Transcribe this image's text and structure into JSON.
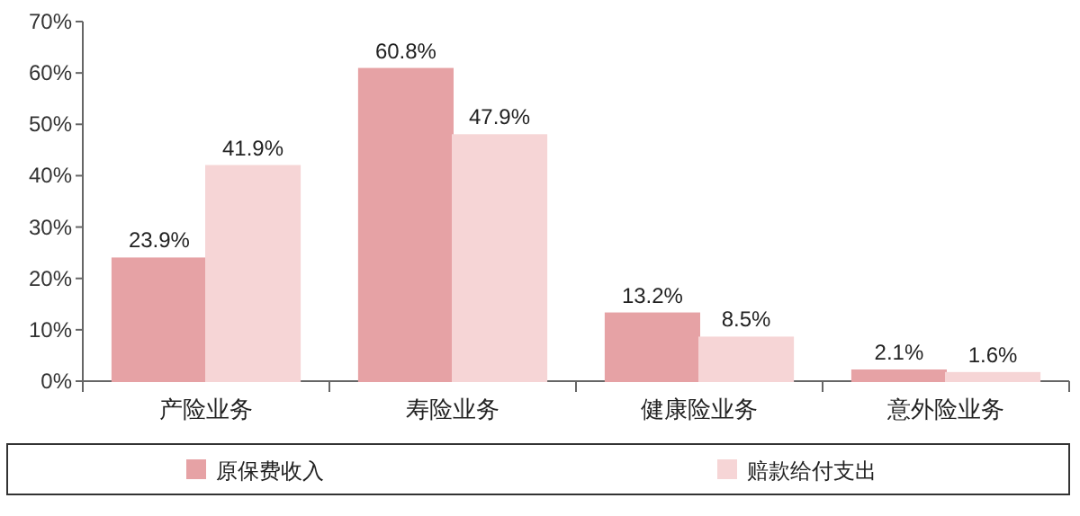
{
  "chart_data": {
    "type": "bar",
    "categories": [
      "产险业务",
      "寿险业务",
      "健康险业务",
      "意外险业务"
    ],
    "series": [
      {
        "name": "原保费收入",
        "color": "#e6a2a5",
        "values": [
          23.9,
          60.8,
          13.2,
          2.1
        ],
        "value_labels": [
          "23.9%",
          "60.8%",
          "13.2%",
          "2.1%"
        ]
      },
      {
        "name": "赔款给付支出",
        "color": "#f6d5d6",
        "values": [
          41.9,
          47.9,
          8.5,
          1.6
        ],
        "value_labels": [
          "41.9%",
          "47.9%",
          "8.5%",
          "1.6%"
        ]
      }
    ],
    "ylim": [
      0,
      70
    ],
    "yticks": [
      {
        "value": 0,
        "label": "0%"
      },
      {
        "value": 10,
        "label": "10%"
      },
      {
        "value": 20,
        "label": "20%"
      },
      {
        "value": 30,
        "label": "30%"
      },
      {
        "value": 40,
        "label": "40%"
      },
      {
        "value": 50,
        "label": "50%"
      },
      {
        "value": 60,
        "label": "60%"
      },
      {
        "value": 70,
        "label": "70%"
      }
    ],
    "grid": false,
    "legend": "bottom"
  }
}
